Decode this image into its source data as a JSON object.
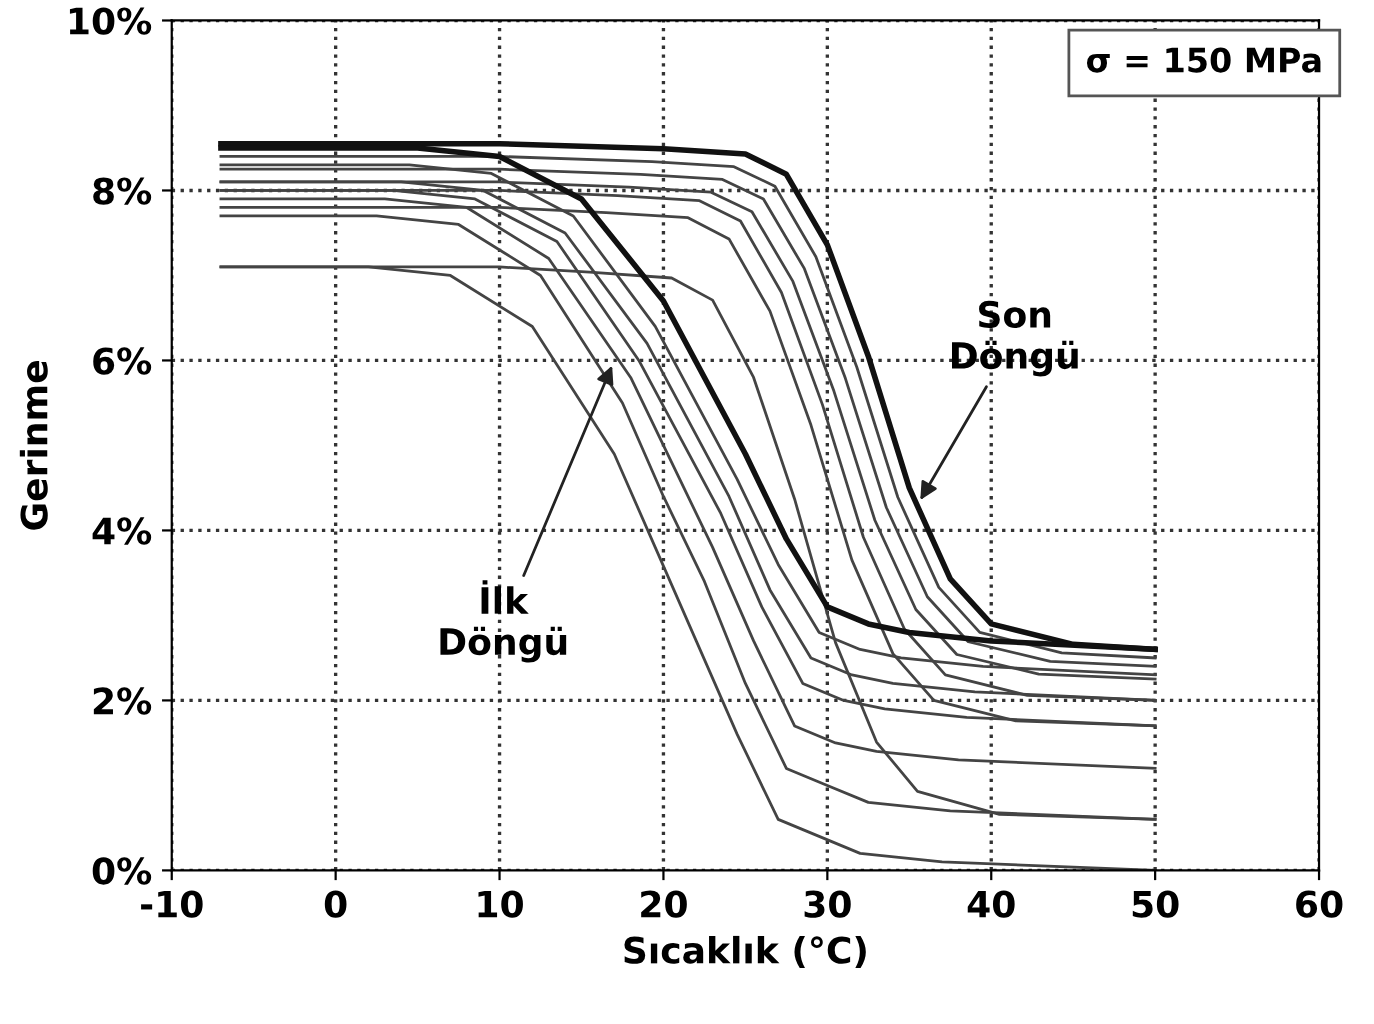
{
  "chart_data": {
    "type": "line",
    "xlabel": "Sıcaklık (°C)",
    "ylabel": "Gerinme",
    "xlim": [
      -10,
      60
    ],
    "xticks": [
      -10,
      0,
      10,
      20,
      30,
      40,
      50,
      60
    ],
    "ylim": [
      0,
      10
    ],
    "yticks": [
      {
        "value": 0,
        "label": "0%"
      },
      {
        "value": 2,
        "label": "2%"
      },
      {
        "value": 4,
        "label": "4%"
      },
      {
        "value": 6,
        "label": "6%"
      },
      {
        "value": 8,
        "label": "8%"
      },
      {
        "value": 10,
        "label": "10%"
      }
    ],
    "grid": true,
    "line_style": "solid",
    "marker": "none",
    "annotations": [
      "σ = 150 MPa",
      {
        "text": "İlk\nDöngü",
        "x": 17,
        "y": 6.0
      },
      {
        "text": "Son\nDöngü",
        "x": 35.5,
        "y": 4.3
      }
    ],
    "series": [
      {
        "color": "#111111",
        "x": [
          -7,
          10,
          20,
          25,
          27.5,
          30,
          32.5,
          35,
          37.5,
          40,
          45,
          50
        ],
        "values": [
          8.55,
          8.55,
          8.49,
          8.43,
          8.19,
          7.36,
          6.05,
          4.5,
          3.43,
          2.9,
          2.66,
          2.6
        ]
      },
      {
        "color": "#444444",
        "x": [
          -7,
          10,
          19.3,
          24.3,
          26.8,
          29.3,
          31.8,
          34.3,
          36.8,
          39.3,
          44.3,
          50
        ],
        "values": [
          8.4,
          8.4,
          8.34,
          8.28,
          8.05,
          7.22,
          5.92,
          4.39,
          3.33,
          2.8,
          2.56,
          2.5
        ]
      },
      {
        "color": "#444444",
        "x": [
          -7,
          10,
          18.6,
          23.6,
          26.1,
          28.6,
          31.1,
          33.6,
          36.1,
          38.6,
          43.6,
          50
        ],
        "values": [
          8.25,
          8.25,
          8.19,
          8.13,
          7.9,
          7.08,
          5.79,
          4.27,
          3.22,
          2.69,
          2.46,
          2.4
        ]
      },
      {
        "color": "#444444",
        "x": [
          -7,
          10,
          17.9,
          22.9,
          25.4,
          27.9,
          30.4,
          32.9,
          35.4,
          37.9,
          42.9,
          50
        ],
        "values": [
          8.1,
          8.1,
          8.04,
          7.98,
          7.75,
          6.93,
          5.64,
          4.12,
          3.07,
          2.54,
          2.31,
          2.25
        ]
      },
      {
        "color": "#444444",
        "x": [
          -7,
          10,
          17.2,
          22.2,
          24.7,
          27.2,
          29.7,
          32.2,
          34.7,
          37.2,
          42.2,
          50
        ],
        "values": [
          8.0,
          8.0,
          7.94,
          7.88,
          7.64,
          6.8,
          5.48,
          3.92,
          2.84,
          2.3,
          2.06,
          2.0
        ]
      },
      {
        "color": "#444444",
        "x": [
          -7,
          10,
          16.5,
          21.5,
          24.0,
          26.5,
          29.0,
          31.5,
          34.0,
          36.5,
          41.5,
          50
        ],
        "values": [
          7.8,
          7.8,
          7.74,
          7.68,
          7.43,
          6.58,
          5.24,
          3.65,
          2.55,
          2.0,
          1.76,
          1.7
        ]
      },
      {
        "color": "#444444",
        "x": [
          -7,
          10,
          15.5,
          20.5,
          23.0,
          25.5,
          28.0,
          30.5,
          33.0,
          35.5,
          40.5,
          50
        ],
        "values": [
          7.1,
          7.1,
          7.04,
          6.97,
          6.71,
          5.8,
          4.37,
          2.68,
          1.51,
          0.93,
          0.66,
          0.6
        ]
      },
      {
        "color": "#111111",
        "x": [
          -7,
          5,
          10,
          15,
          20,
          22.5,
          25,
          27.5,
          30,
          32.5,
          35,
          40,
          50
        ],
        "values": [
          8.5,
          8.5,
          8.4,
          7.9,
          6.7,
          5.8,
          4.9,
          3.9,
          3.1,
          2.9,
          2.8,
          2.7,
          2.6
        ]
      },
      {
        "color": "#444444",
        "x": [
          -7,
          4.5,
          9.5,
          14.5,
          19.5,
          22,
          24.5,
          27,
          29.5,
          32,
          34.5,
          39.5,
          50
        ],
        "values": [
          8.3,
          8.3,
          8.2,
          7.7,
          6.4,
          5.5,
          4.6,
          3.6,
          2.8,
          2.6,
          2.5,
          2.4,
          2.3
        ]
      },
      {
        "color": "#444444",
        "x": [
          -7,
          4,
          9,
          14,
          19,
          21.5,
          24,
          26.5,
          29,
          31.5,
          34,
          39,
          50
        ],
        "values": [
          8.1,
          8.1,
          8.0,
          7.5,
          6.2,
          5.3,
          4.4,
          3.3,
          2.5,
          2.3,
          2.2,
          2.1,
          2.0
        ]
      },
      {
        "color": "#444444",
        "x": [
          -7,
          3.5,
          8.5,
          13.5,
          18.5,
          21,
          23.5,
          26,
          28.5,
          31,
          33.5,
          38.5,
          50
        ],
        "values": [
          8.0,
          8.0,
          7.9,
          7.4,
          6.0,
          5.1,
          4.2,
          3.1,
          2.2,
          2.0,
          1.9,
          1.8,
          1.7
        ]
      },
      {
        "color": "#444444",
        "x": [
          -7,
          3,
          8,
          13,
          18,
          20.5,
          23,
          25.5,
          28,
          30.5,
          33,
          38,
          50
        ],
        "values": [
          7.9,
          7.9,
          7.8,
          7.2,
          5.8,
          4.8,
          3.8,
          2.7,
          1.7,
          1.5,
          1.4,
          1.3,
          1.2
        ]
      },
      {
        "color": "#444444",
        "x": [
          -7,
          2.5,
          7.5,
          12.5,
          17.5,
          20,
          22.5,
          25,
          27.5,
          30,
          32.5,
          37.5,
          50
        ],
        "values": [
          7.7,
          7.7,
          7.6,
          7.0,
          5.5,
          4.4,
          3.4,
          2.2,
          1.2,
          1.0,
          0.8,
          0.7,
          0.6
        ]
      },
      {
        "color": "#444444",
        "x": [
          -7,
          2,
          7,
          12,
          17,
          19.5,
          22,
          24.5,
          27,
          29.5,
          32,
          37,
          50
        ],
        "values": [
          7.1,
          7.1,
          7.0,
          6.4,
          4.9,
          3.8,
          2.7,
          1.6,
          0.6,
          0.4,
          0.2,
          0.1,
          0.0
        ]
      }
    ]
  }
}
